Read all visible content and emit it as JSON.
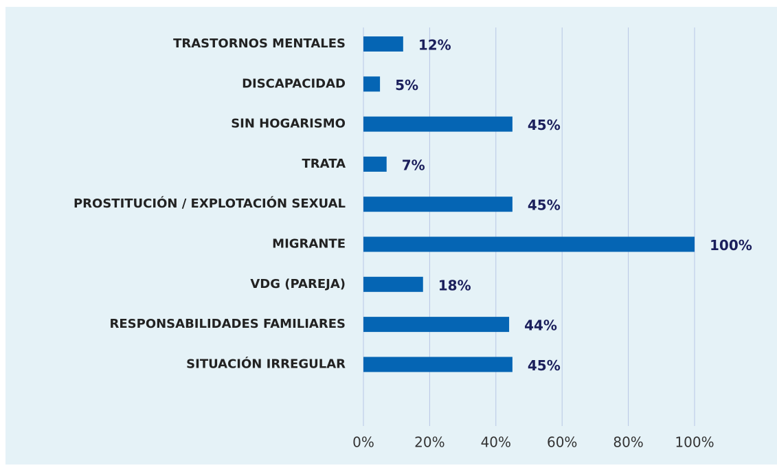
{
  "chart_data": {
    "type": "bar",
    "orientation": "horizontal",
    "categories": [
      "TRASTORNOS MENTALES",
      "DISCAPACIDAD",
      "SIN HOGARISMO",
      "TRATA",
      "PROSTITUCIÓN / EXPLOTACIÓN SEXUAL",
      "MIGRANTE",
      "VDG (PAREJA)",
      "RESPONSABILIDADES FAMILIARES",
      "SITUACIÓN IRREGULAR"
    ],
    "values": [
      12,
      5,
      45,
      7,
      45,
      100,
      18,
      44,
      45
    ],
    "value_labels": [
      "12%",
      "5%",
      "45%",
      "7%",
      "45%",
      "100%",
      "18%",
      "44%",
      "45%"
    ],
    "color": "#0565b4",
    "xlim": [
      0,
      100
    ],
    "xticks": [
      {
        "value": 0,
        "label": "0%"
      },
      {
        "value": 20,
        "label": "20%"
      },
      {
        "value": 40,
        "label": "40%"
      },
      {
        "value": 60,
        "label": "60%"
      },
      {
        "value": 80,
        "label": "80%"
      },
      {
        "value": 100,
        "label": "100%"
      }
    ],
    "grid": true
  }
}
